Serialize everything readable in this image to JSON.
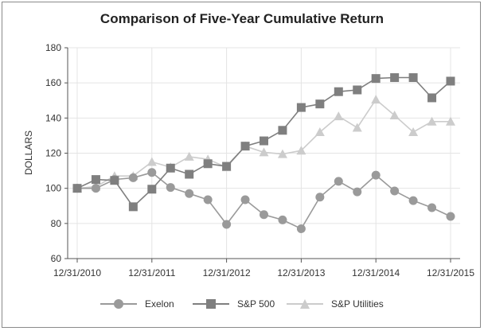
{
  "chart_data": {
    "type": "line",
    "title": "Comparison of Five-Year Cumulative Return",
    "ylabel": "DOLLARS",
    "xlabel": "",
    "ylim": [
      60,
      180
    ],
    "yticks": [
      60,
      80,
      100,
      120,
      140,
      160,
      180
    ],
    "xlim": [
      0,
      20
    ],
    "xtick_positions": [
      0,
      4,
      8,
      12,
      16,
      20
    ],
    "xtick_labels": [
      "12/31/2010",
      "12/31/2011",
      "12/31/2012",
      "12/31/2013",
      "12/31/2014",
      "12/31/2015"
    ],
    "grid": true,
    "legend_position": "bottom",
    "series": [
      {
        "name": "Exelon",
        "marker": "circle",
        "color": "#9a9a9a",
        "values": [
          100,
          100,
          105,
          106,
          109,
          100.5,
          97,
          93.5,
          79.5,
          93.5,
          85,
          82,
          77,
          95,
          104,
          98,
          107.5,
          98.5,
          93,
          89,
          84
        ]
      },
      {
        "name": "S&P 500",
        "marker": "square",
        "color": "#7f7f7f",
        "values": [
          100,
          105,
          104.5,
          89.5,
          99.5,
          111.5,
          108,
          114,
          112.5,
          124,
          127,
          133,
          146,
          148,
          155,
          156,
          162.5,
          163,
          163,
          151.5,
          161
        ]
      },
      {
        "name": "S&P Utilities",
        "marker": "triangle",
        "color": "#cccccc",
        "values": [
          100,
          101,
          107,
          107,
          115,
          112,
          118,
          116.5,
          112,
          124,
          120.5,
          119.5,
          121.5,
          132,
          141,
          134.5,
          150.5,
          141.5,
          132,
          138,
          138
        ]
      }
    ]
  }
}
